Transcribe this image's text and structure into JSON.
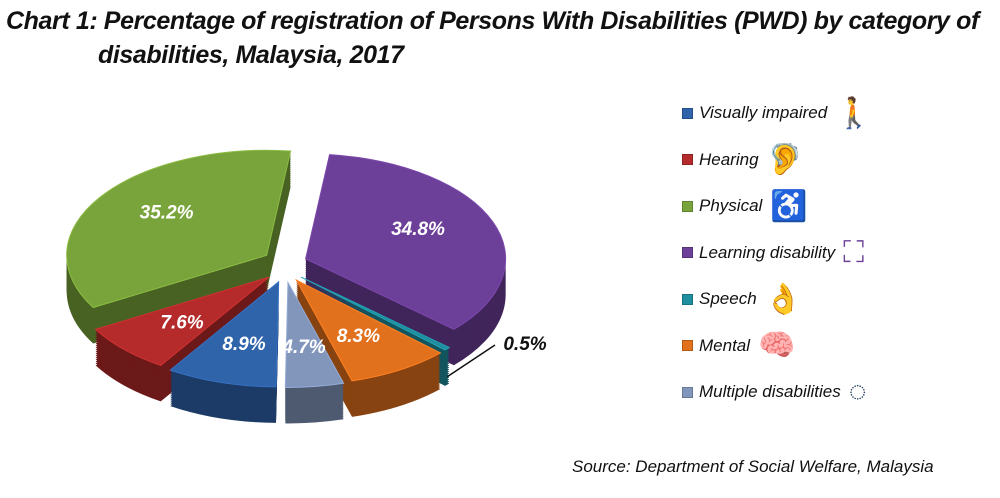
{
  "chart_data": {
    "type": "pie",
    "title": "Chart 1: Percentage of registration of Persons With Disabilities (PWD) by category of disabilities, Malaysia, 2017",
    "title_line1": "Chart 1: Percentage of registration of Persons With Disabilities (PWD) by category of",
    "title_line2": "disabilities, Malaysia, 2017",
    "slices": [
      {
        "name": "Learning disability",
        "value": 34.8,
        "label": "34.8%",
        "color": "#6c3f98",
        "icon": "learning-icon"
      },
      {
        "name": "Speech",
        "value": 0.5,
        "label": "0.5%",
        "color": "#1f8e9e",
        "icon": "sign-language-icon"
      },
      {
        "name": "Mental",
        "value": 8.3,
        "label": "8.3%",
        "color": "#e2711d",
        "icon": "brain-icon"
      },
      {
        "name": "Multiple disabilities",
        "value": 4.7,
        "label": "4.7%",
        "color": "#8296bc",
        "icon": "multiple-disabilities-icon"
      },
      {
        "name": "Visually impaired",
        "value": 8.9,
        "label": "8.9%",
        "color": "#2f63aa",
        "icon": "blind-person-icon"
      },
      {
        "name": "Hearing",
        "value": 7.6,
        "label": "7.6%",
        "color": "#b52b2b",
        "icon": "hearing-impaired-icon"
      },
      {
        "name": "Physical",
        "value": 35.2,
        "label": "35.2%",
        "color": "#79a43b",
        "icon": "wheelchair-icon"
      }
    ],
    "legend": [
      {
        "name": "Visually impaired",
        "color": "#2f63aa",
        "glyph": "🚶",
        "gcolor": "#2f63aa"
      },
      {
        "name": "Hearing",
        "color": "#b52b2b",
        "glyph": "🦻",
        "gcolor": "#b52b2b"
      },
      {
        "name": "Physical",
        "color": "#79a43b",
        "glyph": "♿",
        "gcolor": "#79a43b"
      },
      {
        "name": "Learning disability",
        "color": "#6c3f98",
        "glyph": "⛶",
        "gcolor": "#6c3f98"
      },
      {
        "name": "Speech",
        "color": "#1f8e9e",
        "glyph": "👌",
        "gcolor": "#1f8e9e"
      },
      {
        "name": "Mental",
        "color": "#e2711d",
        "glyph": "🧠",
        "gcolor": "#e8b48e"
      },
      {
        "name": "Multiple disabilities",
        "color": "#8296bc",
        "glyph": "◌",
        "gcolor": "#1d3557"
      }
    ],
    "legend_position": "right",
    "source": "Source: Department of Social Welfare, Malaysia"
  }
}
